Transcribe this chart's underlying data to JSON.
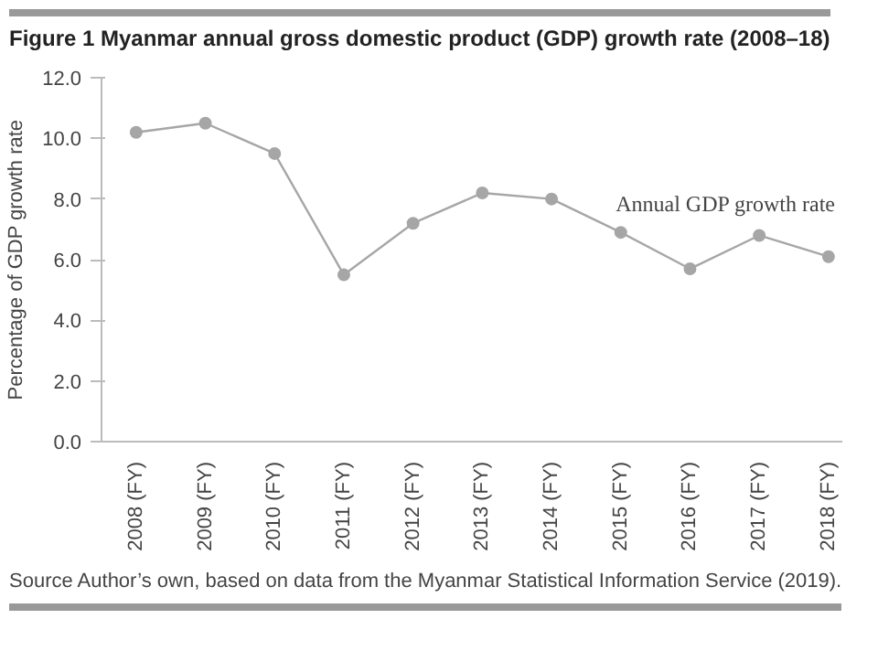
{
  "chart_data": {
    "type": "line",
    "title": "Figure 1 Myanmar annual gross domestic product (GDP) growth rate (2008–18)",
    "ylabel": "Percentage of GDP growth rate",
    "categories": [
      "2008 (FY)",
      "2009 (FY)",
      "2010 (FY)",
      "2011 (FY)",
      "2012 (FY)",
      "2013 (FY)",
      "2014 (FY)",
      "2015 (FY)",
      "2016 (FY)",
      "2017 (FY)",
      "2018 (FY)"
    ],
    "series": [
      {
        "name": "Annual GDP growth rate",
        "color": "#a6a6a6",
        "values": [
          10.2,
          10.5,
          9.5,
          5.5,
          7.2,
          8.2,
          8.0,
          6.9,
          5.7,
          6.8,
          6.1
        ]
      }
    ],
    "ylim": [
      0,
      12
    ],
    "yticks": [
      {
        "value": 0,
        "label": "0.0"
      },
      {
        "value": 2,
        "label": "2.0"
      },
      {
        "value": 4,
        "label": "4.0"
      },
      {
        "value": 6,
        "label": "6.0"
      },
      {
        "value": 8,
        "label": "8.0"
      },
      {
        "value": 10,
        "label": "10.0"
      },
      {
        "value": 12,
        "label": "12.0"
      }
    ],
    "marker": "circle",
    "line_style": "solid",
    "grid": false,
    "annotations": [
      "Source Author’s own, based on data from the Myanmar Statistical Information Service (2019)."
    ]
  }
}
